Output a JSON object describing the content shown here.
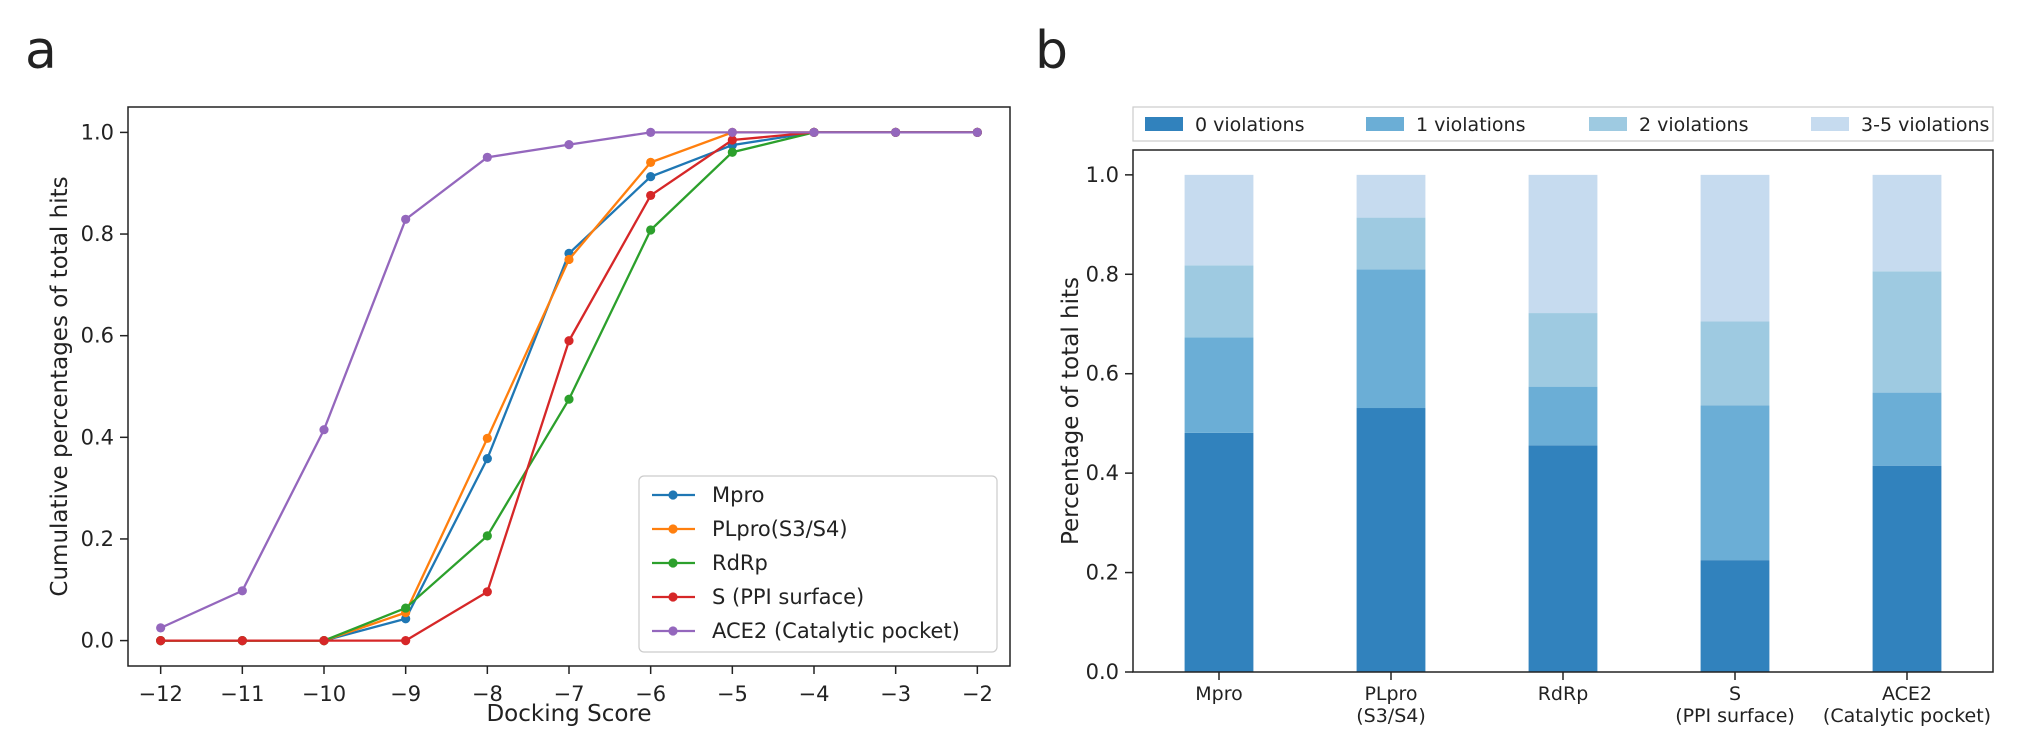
{
  "panels": {
    "a": {
      "label": "a"
    },
    "b": {
      "label": "b"
    }
  },
  "chart_data": [
    {
      "type": "line",
      "title": "",
      "xlabel": "Docking Score",
      "ylabel": "Cumulative percentages of total hits",
      "xlim": [
        -12.4,
        -1.6
      ],
      "ylim": [
        -0.05,
        1.05
      ],
      "x_ticks": [
        -12,
        -11,
        -10,
        -9,
        -8,
        -7,
        -6,
        -5,
        -4,
        -3,
        -2
      ],
      "x_tick_labels": [
        "−12",
        "−11",
        "−10",
        "−9",
        "−8",
        "−7",
        "−6",
        "−5",
        "−4",
        "−3",
        "−2"
      ],
      "y_ticks": [
        0.0,
        0.2,
        0.4,
        0.6,
        0.8,
        1.0
      ],
      "y_tick_labels": [
        "0.0",
        "0.2",
        "0.4",
        "0.6",
        "0.8",
        "1.0"
      ],
      "legend_position": "lower-right",
      "x": [
        -12,
        -11,
        -10,
        -9,
        -8,
        -7,
        -6,
        -5,
        -4,
        -3,
        -2
      ],
      "series": [
        {
          "name": "Mpro",
          "color": "#1f77b4",
          "values": [
            0.0,
            0.0,
            0.0,
            0.043,
            0.358,
            0.762,
            0.913,
            0.975,
            1.0,
            1.0,
            1.0
          ]
        },
        {
          "name": "PLpro(S3/S4)",
          "color": "#ff7f0e",
          "values": [
            0.0,
            0.0,
            0.0,
            0.055,
            0.398,
            0.75,
            0.941,
            1.0,
            1.0,
            1.0,
            1.0
          ]
        },
        {
          "name": "RdRp",
          "color": "#2ca02c",
          "values": [
            0.0,
            0.0,
            0.0,
            0.064,
            0.206,
            0.475,
            0.808,
            0.961,
            1.0,
            1.0,
            1.0
          ]
        },
        {
          "name": "S (PPI surface)",
          "color": "#d62728",
          "values": [
            0.0,
            0.0,
            0.0,
            0.0,
            0.096,
            0.59,
            0.876,
            0.985,
            1.0,
            1.0,
            1.0
          ]
        },
        {
          "name": "ACE2 (Catalytic pocket)",
          "color": "#9467bd",
          "values": [
            0.025,
            0.098,
            0.415,
            0.829,
            0.951,
            0.976,
            1.0,
            1.0,
            1.0,
            1.0,
            1.0
          ]
        }
      ]
    },
    {
      "type": "bar",
      "stacked": true,
      "title": "",
      "xlabel": "",
      "ylabel": "Percentage of total hits",
      "ylim": [
        0,
        1.05
      ],
      "y_ticks": [
        0.0,
        0.2,
        0.4,
        0.6,
        0.8,
        1.0
      ],
      "y_tick_labels": [
        "0.0",
        "0.2",
        "0.4",
        "0.6",
        "0.8",
        "1.0"
      ],
      "legend_position": "top",
      "categories": [
        [
          "Mpro"
        ],
        [
          "PLpro",
          "(S3/S4)"
        ],
        [
          "RdRp"
        ],
        [
          "S",
          "(PPI surface)"
        ],
        [
          "ACE2",
          "(Catalytic pocket)"
        ]
      ],
      "series": [
        {
          "name": "0 violations",
          "color": "#3182bd",
          "values": [
            0.481,
            0.531,
            0.456,
            0.225,
            0.415
          ]
        },
        {
          "name": "1 violations",
          "color": "#6baed6",
          "values": [
            0.192,
            0.279,
            0.118,
            0.311,
            0.147
          ]
        },
        {
          "name": "2 violations",
          "color": "#9ecae1",
          "values": [
            0.145,
            0.104,
            0.148,
            0.169,
            0.244
          ]
        },
        {
          "name": "3-5 violations",
          "color": "#c6dbef",
          "values": [
            0.182,
            0.086,
            0.278,
            0.295,
            0.194
          ]
        }
      ]
    }
  ]
}
